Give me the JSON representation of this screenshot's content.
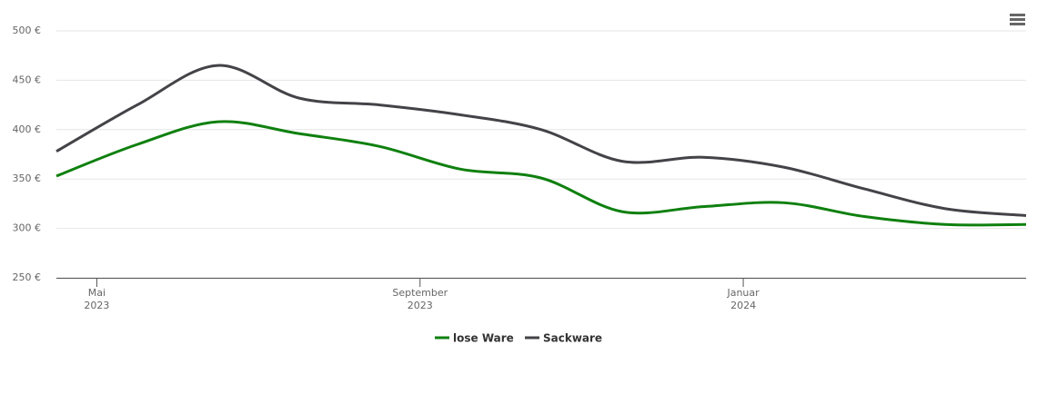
{
  "chart_data": {
    "type": "line",
    "x": [
      "2023-04",
      "2023-05",
      "2023-06",
      "2023-07",
      "2023-08",
      "2023-09",
      "2023-10",
      "2023-11",
      "2023-12",
      "2024-01",
      "2024-02",
      "2024-03",
      "2024-04"
    ],
    "series": [
      {
        "name": "lose Ware",
        "color": "#0f800f",
        "values": [
          353,
          385,
          408,
          396,
          383,
          360,
          351,
          317,
          322,
          326,
          312,
          304,
          304
        ]
      },
      {
        "name": "Sackware",
        "color": "#434348",
        "values": [
          378,
          425,
          465,
          432,
          425,
          415,
          400,
          368,
          372,
          362,
          340,
          320,
          313
        ]
      }
    ],
    "ylim": [
      250,
      500
    ],
    "yticks": [
      {
        "value": 250,
        "label": "250 €"
      },
      {
        "value": 300,
        "label": "300 €"
      },
      {
        "value": 350,
        "label": "350 €"
      },
      {
        "value": 400,
        "label": "400 €"
      },
      {
        "value": 450,
        "label": "450 €"
      },
      {
        "value": 500,
        "label": "500 €"
      }
    ],
    "xticks": [
      {
        "value": "2023-05",
        "label": "Mai",
        "year": "2023"
      },
      {
        "value": "2023-09",
        "label": "September",
        "year": "2023"
      },
      {
        "value": "2024-01",
        "label": "Januar",
        "year": "2024"
      }
    ],
    "grid": true
  }
}
